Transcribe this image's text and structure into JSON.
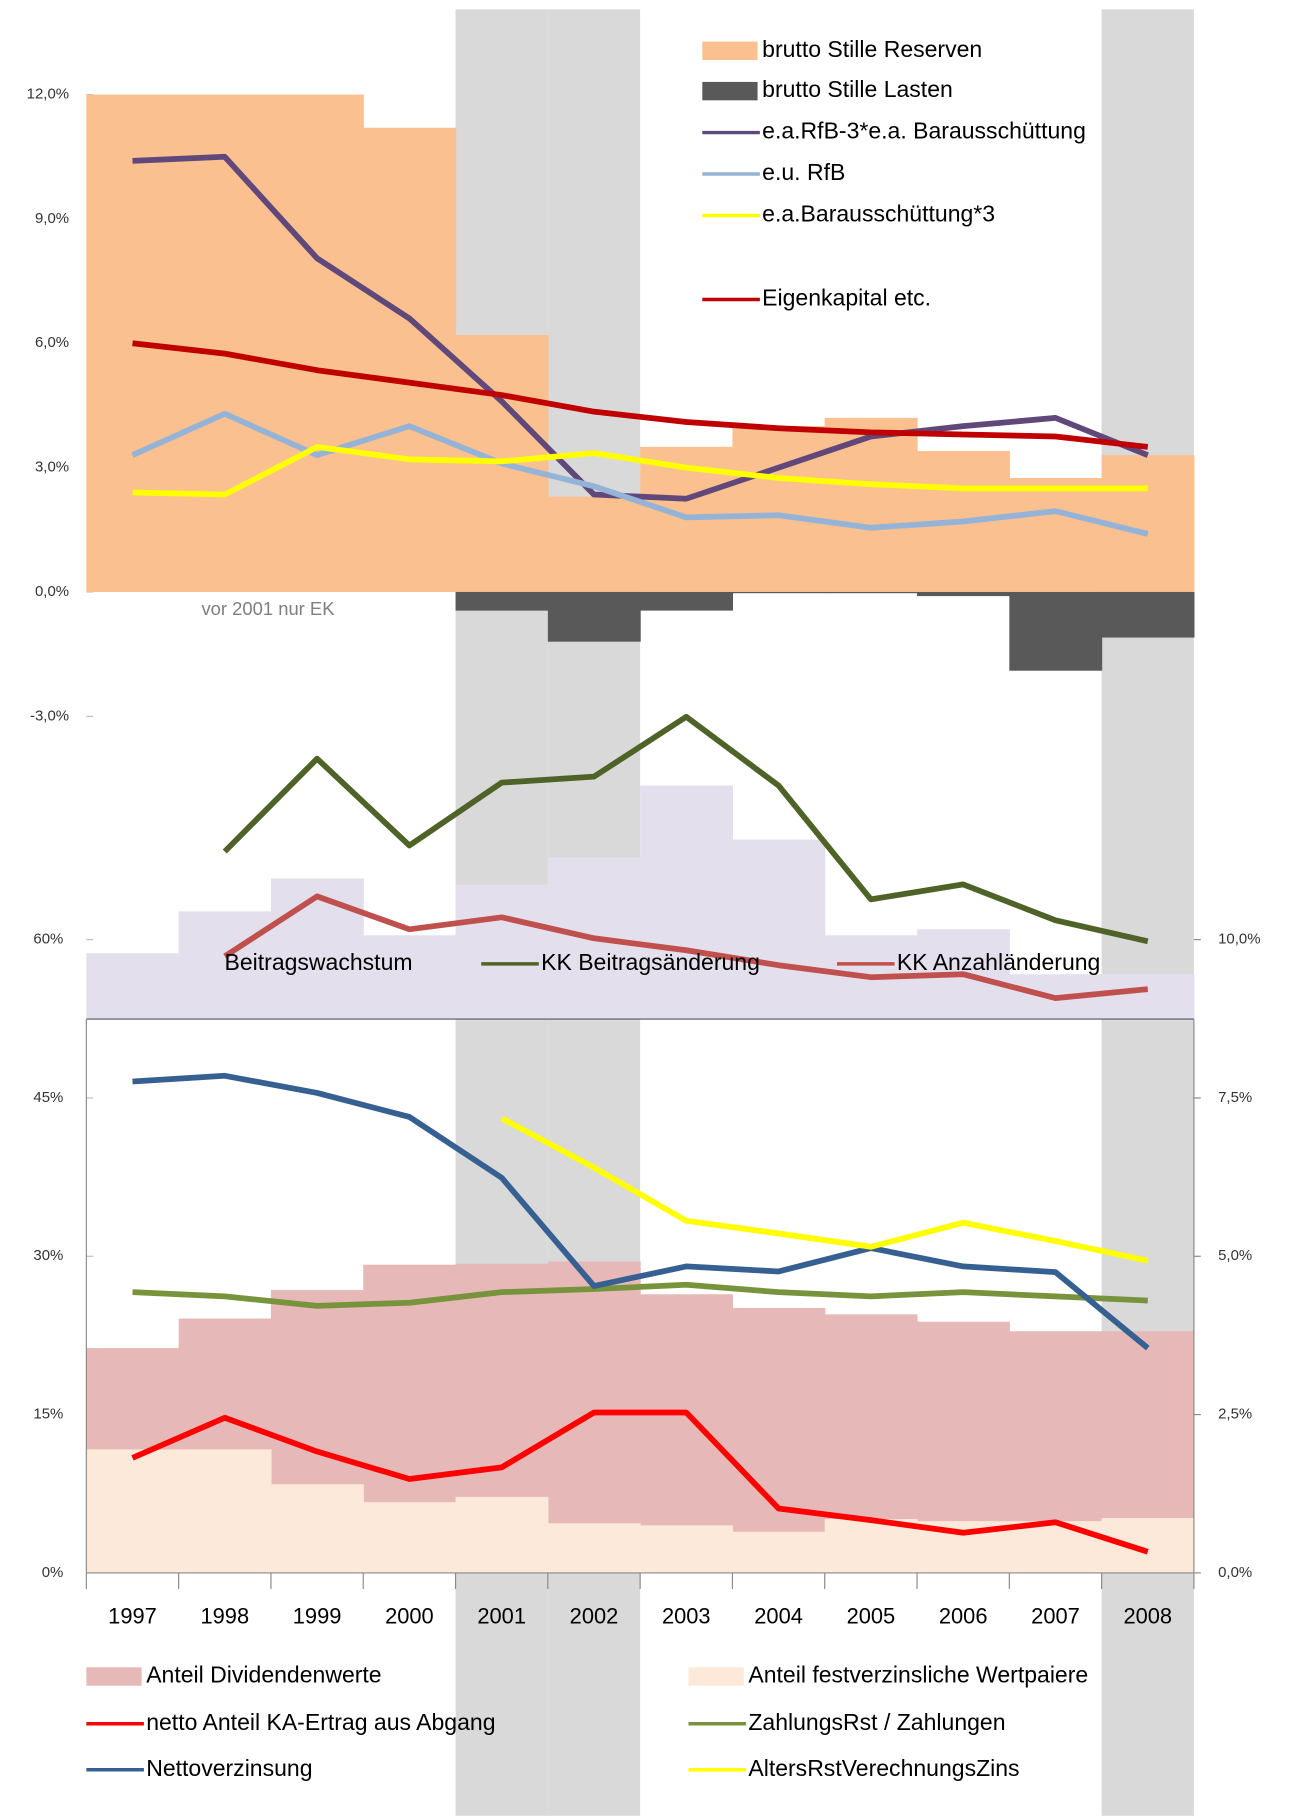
{
  "chart_data": [
    {
      "type": "combo",
      "ylim": [
        -3,
        12
      ],
      "yticks": [
        {
          "value": -3,
          "label": "-3,0%"
        },
        {
          "value": 0,
          "label": "0,0%"
        },
        {
          "value": 3,
          "label": "3,0%"
        },
        {
          "value": 6,
          "label": "6,0%"
        },
        {
          "value": 9,
          "label": "9,0%"
        },
        {
          "value": 12,
          "label": "12,0%"
        }
      ],
      "annotation": "vor 2001 nur EK",
      "series": [
        {
          "name": "brutto Stille Reserven",
          "type": "step-area",
          "color": "#fac090",
          "values": [
            12,
            12,
            12,
            11.2,
            6.2,
            2.3,
            3.5,
            4.0,
            4.2,
            3.4,
            2.75,
            3.3
          ]
        },
        {
          "name": "brutto Stille Lasten",
          "type": "step-area",
          "color": "#595959",
          "values": [
            0,
            0,
            0,
            0,
            -0.45,
            -1.2,
            -0.45,
            -0.03,
            -0.03,
            -0.1,
            -1.9,
            -1.1
          ]
        },
        {
          "name": "e.a.RfB-3*e.a. Barausschüttung",
          "type": "line",
          "color": "#60497a",
          "values": [
            10.4,
            10.5,
            8.05,
            6.6,
            4.6,
            2.35,
            2.25,
            3.0,
            3.75,
            4.0,
            4.2,
            3.3
          ]
        },
        {
          "name": "e.u. RfB",
          "type": "line",
          "color": "#95b3d7",
          "values": [
            3.3,
            4.3,
            3.3,
            4.0,
            3.1,
            2.55,
            1.8,
            1.85,
            1.55,
            1.7,
            1.95,
            1.4
          ]
        },
        {
          "name": "e.a.Barausschüttung*3",
          "type": "line",
          "color": "#ffff00",
          "values": [
            2.4,
            2.35,
            3.5,
            3.2,
            3.15,
            3.35,
            3.0,
            2.75,
            2.6,
            2.5,
            2.5,
            2.5
          ]
        },
        {
          "name": "Eigenkapital etc.",
          "type": "line",
          "color": "#c00000",
          "values": [
            6.0,
            5.75,
            5.35,
            5.05,
            4.75,
            4.35,
            4.1,
            3.95,
            3.85,
            3.8,
            3.75,
            3.5
          ]
        }
      ]
    },
    {
      "type": "combo",
      "ylim": [
        0,
        10
      ],
      "series": [
        {
          "name": "Beitragswachstum",
          "type": "step-area",
          "color": "#e4dfec",
          "values": [
            2.2,
            3.6,
            4.7,
            2.8,
            4.5,
            5.4,
            7.8,
            6.0,
            2.8,
            3.0,
            1.5,
            1.5
          ]
        },
        {
          "name": "KK Beitragsänderung",
          "type": "line",
          "color": "#4f6228",
          "values": [
            null,
            5.6,
            8.7,
            5.8,
            7.9,
            8.1,
            10.1,
            7.8,
            4.0,
            4.5,
            3.3,
            2.6
          ]
        },
        {
          "name": "KK Anzahländerung",
          "type": "line",
          "color": "#c0504d",
          "values": [
            null,
            2.1,
            4.1,
            3.0,
            3.4,
            2.7,
            2.3,
            1.8,
            1.4,
            1.5,
            0.7,
            1.0
          ]
        }
      ]
    },
    {
      "type": "combo",
      "categories": [
        "1997",
        "1998",
        "1999",
        "2000",
        "2001",
        "2002",
        "2003",
        "2004",
        "2005",
        "2006",
        "2007",
        "2008"
      ],
      "shaded": [
        false,
        false,
        false,
        false,
        true,
        true,
        false,
        false,
        false,
        false,
        false,
        true
      ],
      "ylim": [
        0,
        60
      ],
      "yticks": [
        {
          "value": 0,
          "label": "0%"
        },
        {
          "value": 15,
          "label": "15%"
        },
        {
          "value": 30,
          "label": "30%"
        },
        {
          "value": 45,
          "label": "45%"
        },
        {
          "value": 60,
          "label": "60%"
        }
      ],
      "y2lim": [
        0,
        10
      ],
      "y2ticks": [
        {
          "value": 0,
          "label": "0,0%"
        },
        {
          "value": 2.5,
          "label": "2,5%"
        },
        {
          "value": 5,
          "label": "5,0%"
        },
        {
          "value": 7.5,
          "label": "7,5%"
        },
        {
          "value": 10,
          "label": "10,0%"
        }
      ],
      "series": [
        {
          "name": "Anteil Dividendenwerte",
          "type": "step-area",
          "color": "#e6b9b8",
          "values": [
            21.3,
            24.1,
            26.8,
            29.2,
            29.3,
            29.5,
            26.4,
            25.1,
            24.5,
            23.8,
            22.9,
            22.9
          ]
        },
        {
          "name": "Anteil festverzinsliche Wertpaiere",
          "type": "step-area",
          "color": "#fde9d9",
          "values": [
            11.7,
            11.7,
            8.4,
            6.7,
            7.2,
            4.7,
            4.5,
            3.9,
            5.1,
            4.9,
            4.9,
            5.2
          ]
        },
        {
          "name": "netto Anteil KA-Ertrag aus Abgang",
          "type": "line",
          "color": "#ff0000",
          "values": [
            10.9,
            14.7,
            11.5,
            8.9,
            10.0,
            15.2,
            15.2,
            6.1,
            5.0,
            3.8,
            4.8,
            2.0
          ]
        },
        {
          "name": "ZahlungsRst / Zahlungen",
          "type": "line",
          "color": "#77933c",
          "values": [
            26.6,
            26.2,
            25.3,
            25.6,
            26.6,
            26.9,
            27.3,
            26.6,
            26.2,
            26.6,
            26.2,
            25.8
          ]
        },
        {
          "name": "Nettoverzinsung",
          "type": "line",
          "axis": "y2",
          "color": "#376092",
          "values": [
            7.76,
            7.85,
            7.58,
            7.2,
            6.24,
            4.53,
            4.84,
            4.76,
            5.13,
            4.84,
            4.75,
            3.55
          ]
        },
        {
          "name": "AltersRstVerechnungsZins",
          "type": "line",
          "axis": "y2",
          "color": "#ffff00",
          "values": [
            null,
            null,
            null,
            null,
            7.18,
            6.4,
            5.56,
            5.36,
            5.15,
            5.53,
            5.24,
            4.93
          ]
        }
      ]
    }
  ]
}
